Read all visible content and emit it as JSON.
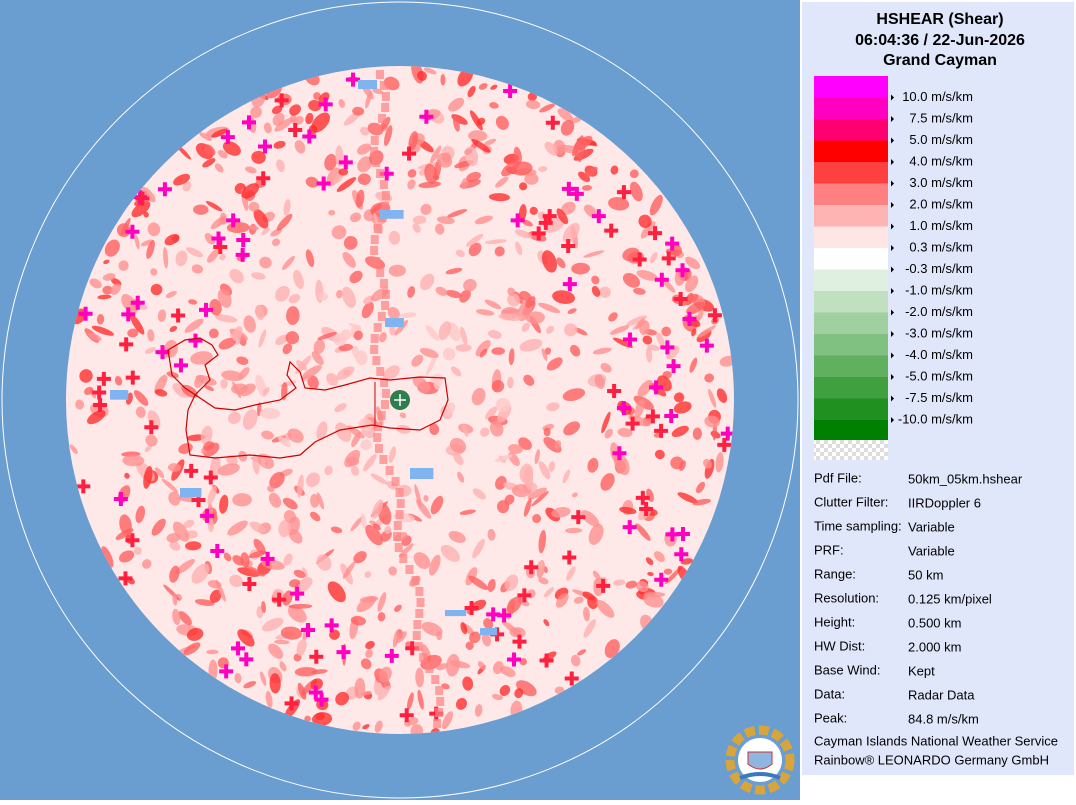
{
  "header": {
    "title": "HSHEAR (Shear)",
    "time": "06:04:36 / 22-Jun-2026",
    "site": "Grand Cayman"
  },
  "legend": {
    "colors": [
      "#ff00ff",
      "#ff00c0",
      "#ff0070",
      "#ff0000",
      "#ff4040",
      "#ff8080",
      "#ffb4b4",
      "#ffe6e6",
      "#ffffff",
      "#e0f0e0",
      "#c0e0c0",
      "#a0d0a0",
      "#80c080",
      "#60b060",
      "#40a040",
      "#209020",
      "#008000"
    ],
    "labels": [
      "10.0 m/s/km",
      "7.5 m/s/km",
      "5.0 m/s/km",
      "4.0 m/s/km",
      "3.0 m/s/km",
      "2.0 m/s/km",
      "1.0 m/s/km",
      "0.3 m/s/km",
      "-0.3 m/s/km",
      "-1.0 m/s/km",
      "-2.0 m/s/km",
      "-3.0 m/s/km",
      "-4.0 m/s/km",
      "-5.0 m/s/km",
      "-7.5 m/s/km",
      "-10.0 m/s/km"
    ]
  },
  "info": {
    "rows": [
      [
        "Pdf File:",
        "50km_05km.hshear"
      ],
      [
        "Clutter Filter:",
        "IIRDoppler 6"
      ],
      [
        "Time sampling:",
        "Variable"
      ],
      [
        "PRF:",
        "Variable"
      ],
      [
        "Range:",
        "50 km"
      ],
      [
        "Resolution:",
        "0.125 km/pixel"
      ],
      [
        "Height:",
        "0.500 km"
      ],
      [
        "HW Dist:",
        "2.000 km"
      ],
      [
        "Base Wind:",
        "Kept"
      ],
      [
        "Data:",
        "Radar Data"
      ],
      [
        "Peak:",
        "84.8 m/s/km"
      ]
    ]
  },
  "footer": [
    "Cayman Islands National Weather Service",
    "Rainbow® LEONARDO Germany GmbH"
  ]
}
